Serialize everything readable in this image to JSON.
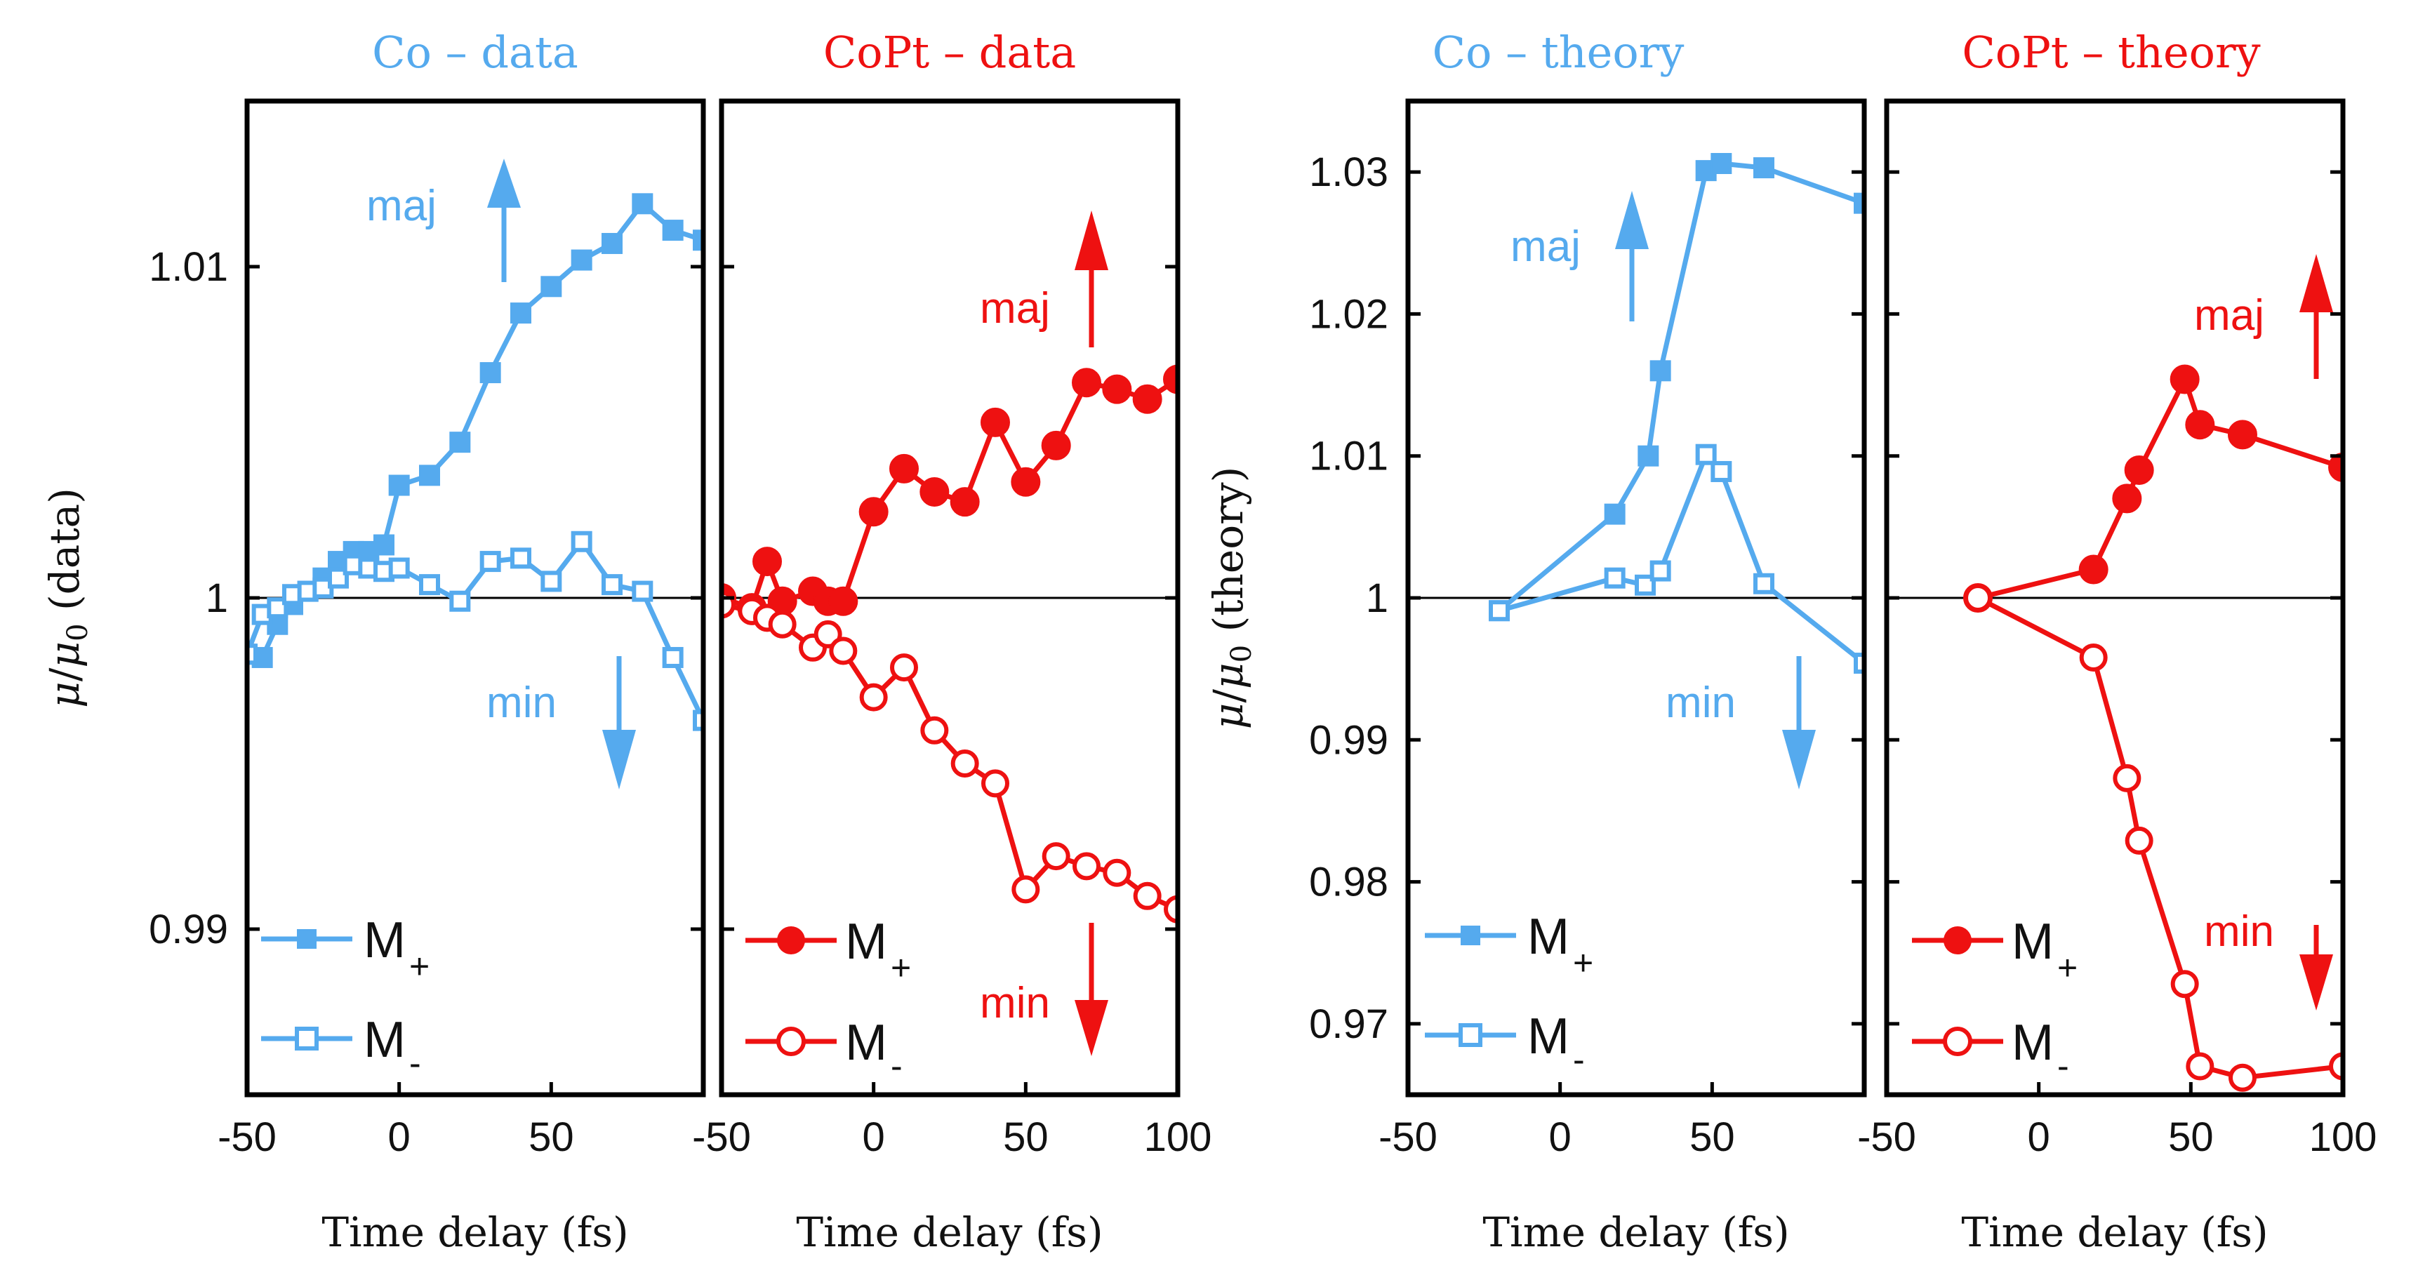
{
  "chart_data": [
    {
      "type": "line",
      "title": "Co – data",
      "color": "#55aaee",
      "xlabel": "Time delay (fs)",
      "ylabel": "μ/μ0 (data)",
      "ylabel_parts": {
        "mu": "μ",
        "slash": "/",
        "mu0": "μ",
        "sub0": "0",
        "rest": " (data)"
      },
      "xlim": [
        -50,
        100
      ],
      "ylim": [
        0.985,
        1.015
      ],
      "xticks": [
        -50,
        0,
        50
      ],
      "xtick_labels": [
        "-50",
        "0",
        "50"
      ],
      "yticks": [
        0.99,
        1.0,
        1.01
      ],
      "ytick_labels": [
        "0.99",
        "1",
        "1.01"
      ],
      "series": [
        {
          "name": "M+",
          "marker": "square-filled",
          "x": [
            -50,
            -45,
            -40,
            -35,
            -30,
            -25,
            -20,
            -15,
            -10,
            -5,
            0,
            10,
            20,
            30,
            40,
            50,
            60,
            70,
            80,
            90,
            100
          ],
          "y": [
            0.9983,
            0.9982,
            0.9992,
            0.9998,
            1.0002,
            1.0006,
            1.0011,
            1.0014,
            1.0014,
            1.0016,
            1.0034,
            1.0037,
            1.0047,
            1.0068,
            1.0086,
            1.0094,
            1.0102,
            1.0107,
            1.0119,
            1.0111,
            1.0108
          ]
        },
        {
          "name": "M-",
          "marker": "square-open",
          "x": [
            -50,
            -45,
            -40,
            -35,
            -30,
            -25,
            -20,
            -15,
            -10,
            -5,
            0,
            10,
            20,
            30,
            40,
            50,
            60,
            70,
            80,
            90,
            100
          ],
          "y": [
            0.9983,
            0.9995,
            0.9997,
            1.0001,
            1.0002,
            1.0003,
            1.0006,
            1.001,
            1.0009,
            1.0008,
            1.0009,
            1.0004,
            0.9999,
            1.0011,
            1.0012,
            1.0005,
            1.0017,
            1.0004,
            1.0002,
            0.9982,
            0.9963
          ]
        }
      ],
      "legend": {
        "m_plus": "M",
        "plus_sub": "+",
        "m_minus": "M",
        "minus_sub": "-"
      },
      "annotations": {
        "up_label": "maj",
        "down_label": "min"
      }
    },
    {
      "type": "line",
      "title": "CoPt – data",
      "color": "#ee1111",
      "xlabel": "Time delay (fs)",
      "xlim": [
        -50,
        100
      ],
      "ylim": [
        0.985,
        1.015
      ],
      "xticks": [
        -50,
        0,
        50,
        100
      ],
      "xtick_labels": [
        "-50",
        "0",
        "50",
        "100"
      ],
      "series": [
        {
          "name": "M+",
          "marker": "circle-filled",
          "x": [
            -50,
            -40,
            -35,
            -30,
            -20,
            -15,
            -10,
            0,
            10,
            20,
            30,
            40,
            50,
            60,
            70,
            80,
            90,
            100
          ],
          "y": [
            1.0,
            0.9997,
            1.0011,
            0.9999,
            1.0002,
            0.9999,
            0.9999,
            1.0026,
            1.0039,
            1.0032,
            1.0029,
            1.0053,
            1.0035,
            1.0046,
            1.0065,
            1.0063,
            1.006,
            1.0066
          ]
        },
        {
          "name": "M-",
          "marker": "circle-open",
          "x": [
            -50,
            -40,
            -35,
            -30,
            -20,
            -15,
            -10,
            0,
            10,
            20,
            30,
            40,
            50,
            60,
            70,
            80,
            90,
            100
          ],
          "y": [
            0.9998,
            0.9996,
            0.9994,
            0.9992,
            0.9985,
            0.9989,
            0.9984,
            0.997,
            0.9979,
            0.996,
            0.995,
            0.9944,
            0.9912,
            0.9922,
            0.9919,
            0.9917,
            0.991,
            0.9906
          ]
        }
      ],
      "legend": {
        "m_plus": "M",
        "plus_sub": "+",
        "m_minus": "M",
        "minus_sub": "-"
      },
      "annotations": {
        "up_label": "maj",
        "down_label": "min"
      }
    },
    {
      "type": "line",
      "title": "Co – theory",
      "color": "#55aaee",
      "xlabel": "Time delay (fs)",
      "ylabel": "μ/μ0 (theory)",
      "ylabel_parts": {
        "mu": "μ",
        "slash": "/",
        "mu0": "μ",
        "sub0": "0",
        "rest": " (theory)"
      },
      "xlim": [
        -50,
        100
      ],
      "ylim": [
        0.965,
        1.035
      ],
      "xticks": [
        -50,
        0,
        50
      ],
      "xtick_labels": [
        "-50",
        "0",
        "50"
      ],
      "yticks": [
        0.97,
        0.98,
        0.99,
        1.0,
        1.01,
        1.02,
        1.03
      ],
      "ytick_labels": [
        "0.97",
        "0.98",
        "0.99",
        "1",
        "1.01",
        "1.02",
        "1.03"
      ],
      "series": [
        {
          "name": "M+",
          "marker": "square-filled",
          "x": [
            -20,
            18,
            29,
            33,
            48,
            53,
            67,
            100
          ],
          "y": [
            0.9991,
            1.0059,
            1.01,
            1.016,
            1.0301,
            1.0306,
            1.0303,
            1.0278
          ]
        },
        {
          "name": "M-",
          "marker": "square-open",
          "x": [
            -20,
            18,
            28,
            33,
            48,
            53,
            67,
            100
          ],
          "y": [
            0.9991,
            1.0014,
            1.0009,
            1.0019,
            1.0101,
            1.0089,
            1.001,
            0.9954
          ]
        }
      ],
      "legend": {
        "m_plus": "M",
        "plus_sub": "+",
        "m_minus": "M",
        "minus_sub": "-"
      },
      "annotations": {
        "up_label": "maj",
        "down_label": "min"
      }
    },
    {
      "type": "line",
      "title": "CoPt – theory",
      "color": "#ee1111",
      "xlabel": "Time delay (fs)",
      "xlim": [
        -50,
        100
      ],
      "ylim": [
        0.965,
        1.035
      ],
      "xticks": [
        -50,
        0,
        50,
        100
      ],
      "xtick_labels": [
        "-50",
        "0",
        "50",
        "100"
      ],
      "series": [
        {
          "name": "M+",
          "marker": "circle-filled",
          "x": [
            -20,
            18,
            29,
            33,
            48,
            53,
            67,
            100
          ],
          "y": [
            1.0,
            1.002,
            1.007,
            1.009,
            1.0154,
            1.0122,
            1.0115,
            1.0092
          ]
        },
        {
          "name": "M-",
          "marker": "circle-open",
          "x": [
            -20,
            18,
            29,
            33,
            48,
            53,
            67,
            100
          ],
          "y": [
            1.0,
            0.9958,
            0.9873,
            0.9829,
            0.9728,
            0.967,
            0.9662,
            0.967
          ]
        }
      ],
      "legend": {
        "m_plus": "M",
        "plus_sub": "+",
        "m_minus": "M",
        "minus_sub": "-"
      },
      "annotations": {
        "up_label": "maj",
        "down_label": "min"
      }
    }
  ]
}
